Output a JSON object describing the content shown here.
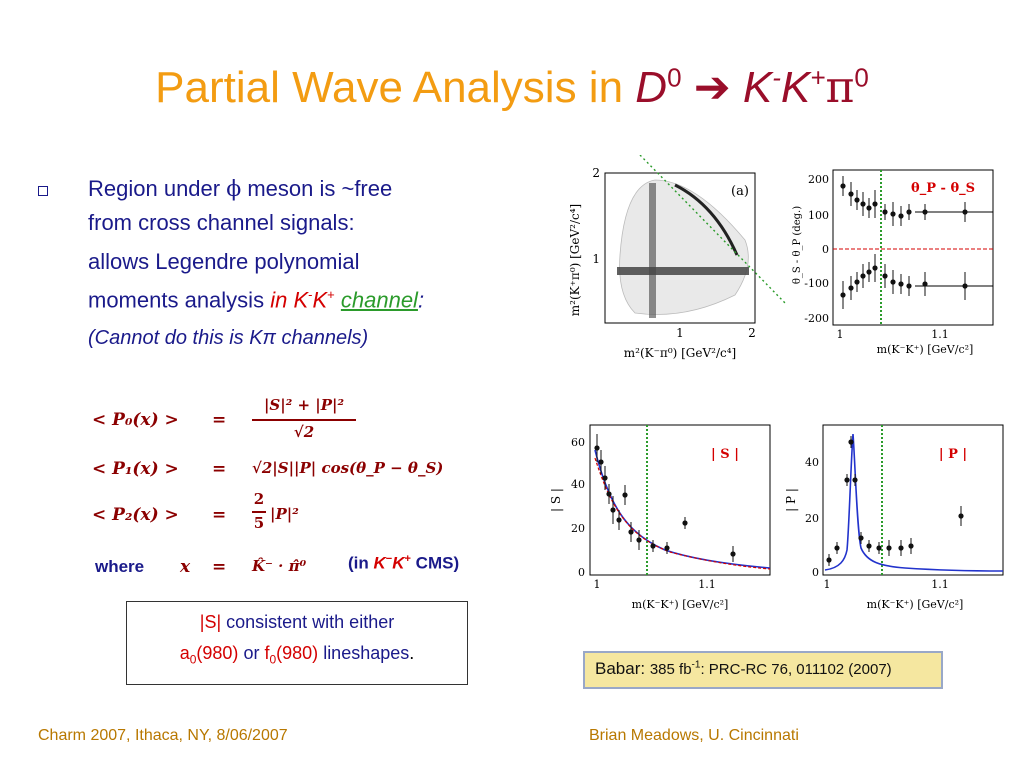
{
  "title": {
    "main": "Partial Wave Analysis in ",
    "D": "D",
    "D_sup": "0",
    "arrow": "➔",
    "K1": "K",
    "K1_sup": "-",
    "K2": "K",
    "K2_sup": "+",
    "pi": "π",
    "pi_sup": "0"
  },
  "bullet": {
    "line1a": "Region under ",
    "phi": "ϕ",
    "line1b": " meson is ~free",
    "line2": "from cross channel signals:",
    "line3": "allows Legendre polynomial",
    "line4a": "moments analysis ",
    "in": "in ",
    "K": "K",
    "Ksup1": "-",
    "K2": "K",
    "Ksup2": "+",
    "channel": "channel",
    "colon": ":",
    "line5": "(Cannot do this is Kπ channels)"
  },
  "equations": {
    "p0_lhs": "< P₀(x) >",
    "eq": "=",
    "p0_num": "|S|² + |P|²",
    "p0_den": "√2",
    "p1_lhs": "< P₁(x) >",
    "p1_rhs": "√2|S||P| cos(θ_P − θ_S)",
    "p2_lhs": "< P₂(x) >",
    "p2_frac_num": "2",
    "p2_frac_den": "5",
    "p2_rhs": "|P|²",
    "where": "where",
    "x_def_lhs": "x",
    "x_def_rhs": "K̂⁻ · π̂⁰",
    "cms_a": "(in ",
    "cms_k1": "K",
    "cms_k1sup": "−",
    "cms_k2": "K",
    "cms_k2sup": "+",
    "cms_b": " CMS)"
  },
  "box": {
    "s_label": "|S|",
    "line1": " consistent with either",
    "a0": "a",
    "a0_sub": "0",
    "a0_mass": "(980)",
    "or": " or ",
    "f0": "f",
    "f0_sub": "0",
    "f0_mass": "(980)",
    "line2_end": " lineshapes",
    "period": "."
  },
  "babar": {
    "label": "Babar:",
    "lumi": "385 fb",
    "lumi_sup": "-1",
    "ref": ": PRC-RC 76, 011102 (2007)"
  },
  "footer": {
    "left": "Charm 2007, Ithaca, NY, 8/06/2007",
    "right": "Brian Meadows, U. Cincinnati"
  },
  "plots": {
    "dalitz": {
      "panel": "(a)",
      "ylabel": "m²(K⁺π⁰) [GeV²/c⁴]",
      "xlabel": "m²(K⁻π⁰) [GeV²/c⁴]",
      "xticks": [
        "1",
        "2"
      ],
      "yticks": [
        "1",
        "2"
      ]
    },
    "phase": {
      "legend": "θ_P - θ_S",
      "ylabel": "θ_S - θ_P (deg.)",
      "xlabel": "m(K⁻K⁺) [GeV/c²]",
      "yticks": [
        "200",
        "100",
        "0",
        "-100",
        "-200"
      ],
      "xticks": [
        "1",
        "1.1"
      ]
    },
    "s_wave": {
      "legend": "| S |",
      "ylabel": "| S |",
      "xlabel": "m(K⁻K⁺) [GeV/c²]",
      "yticks": [
        "60",
        "40",
        "20",
        "0"
      ],
      "xticks": [
        "1",
        "1.1"
      ]
    },
    "p_wave": {
      "legend": "| P |",
      "ylabel": "| P |",
      "xlabel": "m(K⁻K⁺) [GeV/c²]",
      "yticks": [
        "40",
        "20",
        "0"
      ],
      "xticks": [
        "1",
        "1.1"
      ]
    }
  },
  "colors": {
    "title": "#f39c12",
    "dk": "#9a0e2a",
    "body": "#1a1a8a",
    "red": "#d40000",
    "green": "#2b9b2b",
    "footer": "#b87800"
  }
}
